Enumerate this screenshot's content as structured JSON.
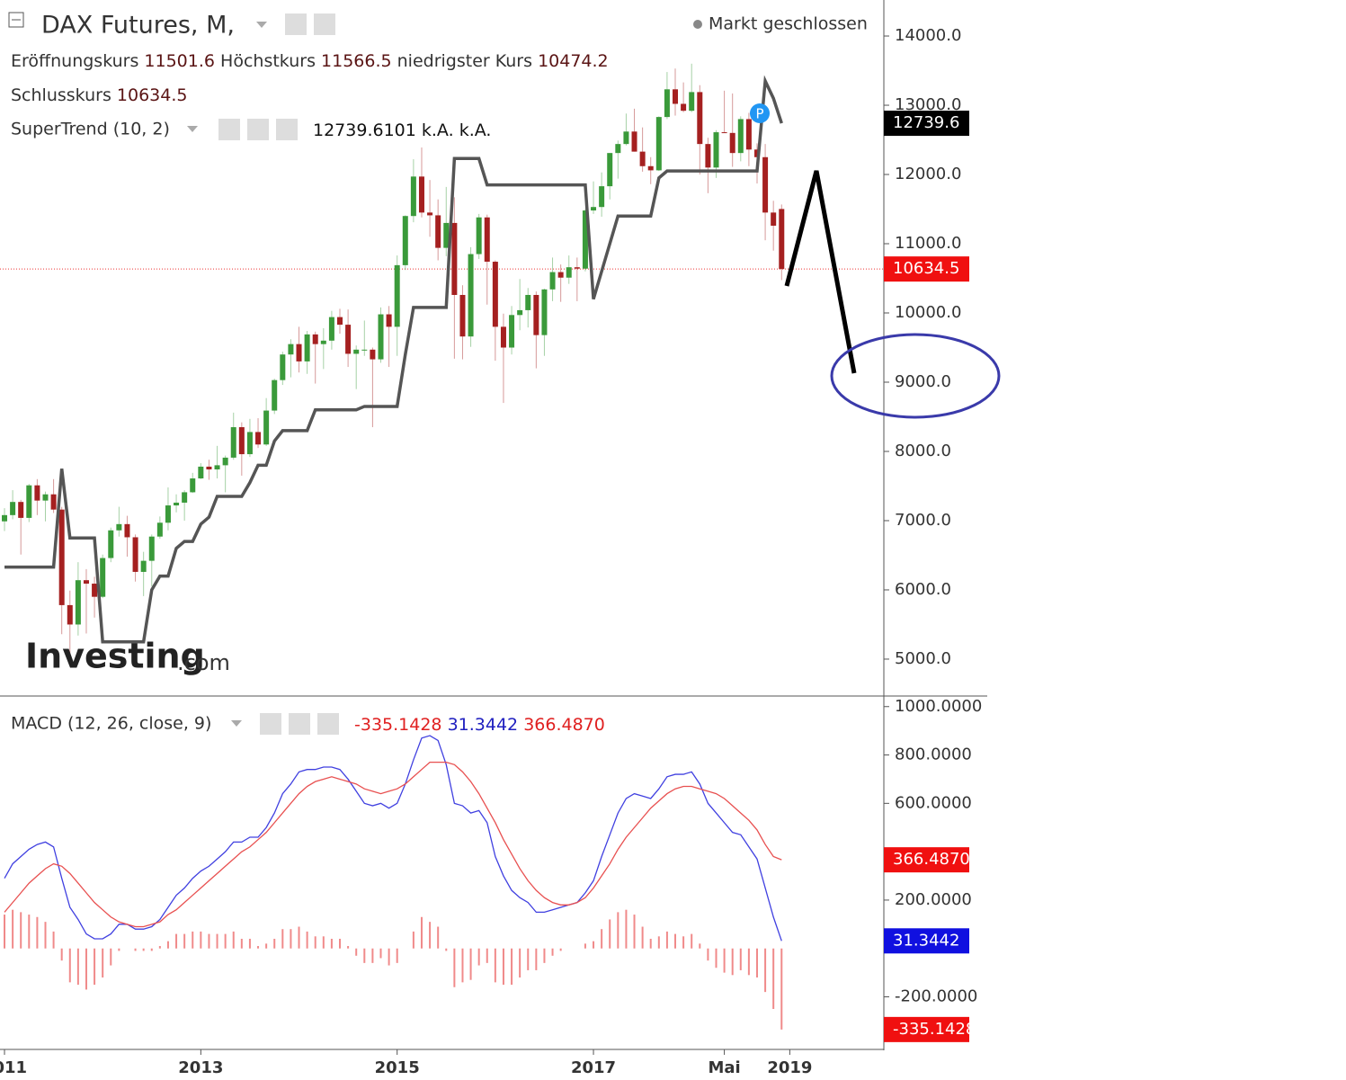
{
  "chart_data": [
    {
      "type": "candlestick",
      "title": "DAX Futures, M,",
      "status": "Markt geschlossen",
      "ohlc_legend": [
        {
          "label": "Eröffnungskurs",
          "value": 11501.6
        },
        {
          "label": "Höchstkurs",
          "value": 11566.5
        },
        {
          "label": "niedrigster Kurs",
          "value": 10474.2
        },
        {
          "label": "Schlusskurs",
          "value": 10634.5
        }
      ],
      "watermark": [
        "Investing",
        ".com"
      ],
      "marker": "P",
      "up_color": "#3a9a3a",
      "down_color": "#a52020",
      "ylim": [
        4480,
        14520
      ],
      "yticks": [
        {
          "value": 5000,
          "label": "5000.0"
        },
        {
          "value": 6000,
          "label": "6000.0"
        },
        {
          "value": 7000,
          "label": "7000.0"
        },
        {
          "value": 8000,
          "label": "8000.0"
        },
        {
          "value": 9000,
          "label": "9000.0"
        },
        {
          "value": 10000,
          "label": "10000.0"
        },
        {
          "value": 11000,
          "label": "11000.0"
        },
        {
          "value": 12000,
          "label": "12000.0"
        },
        {
          "value": 13000,
          "label": "13000.0"
        },
        {
          "value": 14000,
          "label": "14000.0"
        }
      ],
      "last_label": "10634.5",
      "values": [
        [
          6990,
          7180,
          6850,
          7080
        ],
        [
          7080,
          7440,
          7020,
          7270
        ],
        [
          7270,
          7300,
          6510,
          7040
        ],
        [
          7040,
          7530,
          6980,
          7510
        ],
        [
          7510,
          7600,
          7080,
          7290
        ],
        [
          7290,
          7420,
          6990,
          7380
        ],
        [
          7380,
          7600,
          7110,
          7160
        ],
        [
          7160,
          7200,
          5360,
          5780
        ],
        [
          5780,
          5990,
          4970,
          5500
        ],
        [
          5500,
          6400,
          5340,
          6140
        ],
        [
          6140,
          6300,
          5370,
          6090
        ],
        [
          6090,
          6190,
          5600,
          5900
        ],
        [
          5900,
          6510,
          5880,
          6460
        ],
        [
          6460,
          6900,
          6400,
          6860
        ],
        [
          6860,
          7200,
          6770,
          6950
        ],
        [
          6950,
          7070,
          6480,
          6760
        ],
        [
          6760,
          6800,
          6120,
          6260
        ],
        [
          6260,
          6550,
          5910,
          6420
        ],
        [
          6420,
          6800,
          6050,
          6770
        ],
        [
          6770,
          7060,
          6740,
          6970
        ],
        [
          6970,
          7480,
          6860,
          7220
        ],
        [
          7220,
          7380,
          7120,
          7260
        ],
        [
          7260,
          7440,
          7000,
          7410
        ],
        [
          7410,
          7690,
          7400,
          7610
        ],
        [
          7610,
          7830,
          7600,
          7780
        ],
        [
          7780,
          7880,
          7590,
          7740
        ],
        [
          7740,
          8080,
          7610,
          7800
        ],
        [
          7800,
          7940,
          7410,
          7910
        ],
        [
          7910,
          8560,
          7880,
          8350
        ],
        [
          8350,
          8420,
          7650,
          7960
        ],
        [
          7960,
          8470,
          7920,
          8280
        ],
        [
          8280,
          8480,
          8050,
          8100
        ],
        [
          8100,
          8770,
          8080,
          8590
        ],
        [
          8590,
          9050,
          8540,
          9030
        ],
        [
          9030,
          9440,
          8960,
          9400
        ],
        [
          9400,
          9620,
          9070,
          9550
        ],
        [
          9550,
          9800,
          9140,
          9300
        ],
        [
          9300,
          9740,
          9120,
          9690
        ],
        [
          9690,
          9730,
          8980,
          9550
        ],
        [
          9550,
          9780,
          9190,
          9600
        ],
        [
          9600,
          10030,
          9470,
          9940
        ],
        [
          9940,
          10060,
          9700,
          9830
        ],
        [
          9830,
          10050,
          9220,
          9410
        ],
        [
          9410,
          9530,
          8900,
          9470
        ],
        [
          9470,
          9890,
          9380,
          9470
        ],
        [
          9470,
          9500,
          8350,
          9330
        ],
        [
          9330,
          10080,
          9280,
          9980
        ],
        [
          9980,
          10100,
          9220,
          9800
        ],
        [
          9800,
          10830,
          9380,
          10690
        ],
        [
          10690,
          11410,
          10620,
          11400
        ],
        [
          11400,
          12220,
          11310,
          11970
        ],
        [
          11970,
          12390,
          11380,
          11450
        ],
        [
          11450,
          11920,
          11100,
          11410
        ],
        [
          11410,
          11640,
          10760,
          10940
        ],
        [
          10940,
          11820,
          10820,
          11300
        ],
        [
          11300,
          11670,
          9340,
          10260
        ],
        [
          10260,
          10400,
          9330,
          9660
        ],
        [
          9660,
          10950,
          9510,
          10850
        ],
        [
          10850,
          11430,
          10780,
          11380
        ],
        [
          11380,
          11420,
          10120,
          10740
        ],
        [
          10740,
          10760,
          9310,
          9800
        ],
        [
          9800,
          9990,
          8700,
          9500
        ],
        [
          9500,
          10100,
          9400,
          9970
        ],
        [
          9970,
          10490,
          9750,
          10040
        ],
        [
          10040,
          10360,
          9790,
          10260
        ],
        [
          10260,
          10310,
          9200,
          9680
        ],
        [
          9680,
          10350,
          9380,
          10340
        ],
        [
          10340,
          10800,
          10170,
          10590
        ],
        [
          10590,
          10700,
          10160,
          10510
        ],
        [
          10510,
          10830,
          10420,
          10660
        ],
        [
          10660,
          10800,
          10170,
          10640
        ],
        [
          10640,
          11500,
          10600,
          11480
        ],
        [
          11480,
          11900,
          11430,
          11530
        ],
        [
          11530,
          12030,
          11390,
          11830
        ],
        [
          11830,
          12310,
          11640,
          12310
        ],
        [
          12310,
          12490,
          11940,
          12440
        ],
        [
          12440,
          12880,
          12420,
          12620
        ],
        [
          12620,
          12950,
          12330,
          12330
        ],
        [
          12330,
          12680,
          12040,
          12120
        ],
        [
          12120,
          12250,
          11860,
          12060
        ],
        [
          12060,
          12840,
          12050,
          12830
        ],
        [
          12830,
          13480,
          12800,
          13230
        ],
        [
          13230,
          13530,
          12850,
          13020
        ],
        [
          13020,
          13330,
          12900,
          12920
        ],
        [
          12920,
          13600,
          12900,
          13190
        ],
        [
          13190,
          13290,
          12000,
          12440
        ],
        [
          12440,
          12530,
          11730,
          12100
        ],
        [
          12100,
          12640,
          11950,
          12610
        ],
        [
          12610,
          13210,
          12600,
          12600
        ],
        [
          12600,
          13170,
          12110,
          12310
        ],
        [
          12310,
          12840,
          12190,
          12800
        ],
        [
          12800,
          12890,
          12120,
          12360
        ],
        [
          12360,
          12450,
          11870,
          12250
        ],
        [
          12250,
          12440,
          11050,
          11450
        ],
        [
          11450,
          11620,
          10900,
          11260
        ],
        [
          11501.6,
          11566.5,
          10474.2,
          10634.5
        ]
      ],
      "series": [
        {
          "name": "SuperTrend (10, 2)",
          "color": "#555555",
          "legend_values": [
            12739.6101,
            "k.A.",
            "k.A."
          ],
          "tag": "12739.6",
          "values": [
            6330,
            6330,
            6330,
            6330,
            6330,
            6330,
            6330,
            7750,
            6750,
            6750,
            6750,
            6750,
            5250,
            5250,
            5250,
            5250,
            5250,
            5250,
            6000,
            6200,
            6200,
            6600,
            6700,
            6700,
            6950,
            7050,
            7350,
            7350,
            7350,
            7350,
            7550,
            7800,
            7800,
            8150,
            8300,
            8300,
            8300,
            8300,
            8600,
            8600,
            8600,
            8600,
            8600,
            8600,
            8650,
            8650,
            8650,
            8650,
            8650,
            9400,
            10080,
            10080,
            10080,
            10080,
            10080,
            12230,
            12230,
            12230,
            12230,
            11850,
            11850,
            11850,
            11850,
            11850,
            11850,
            11850,
            11850,
            11850,
            11850,
            11850,
            11850,
            11850,
            10200,
            10600,
            11000,
            11400,
            11400,
            11400,
            11400,
            11400,
            11950,
            12050,
            12050,
            12050,
            12050,
            12050,
            12050,
            12050,
            12050,
            12050,
            12050,
            12050,
            12050,
            13350,
            13100,
            12739.6101
          ]
        }
      ]
    },
    {
      "type": "macd",
      "title": "MACD (12, 26, close, 9)",
      "xlim": [
        -0.55,
        107.5
      ],
      "xticks": [
        {
          "value": 0,
          "label": "2011"
        },
        {
          "value": 24,
          "label": "2013"
        },
        {
          "value": 48,
          "label": "2015"
        },
        {
          "value": 72,
          "label": "2017"
        },
        {
          "value": 88,
          "label": "Mai"
        },
        {
          "value": 96,
          "label": "2019"
        }
      ],
      "ylim": [
        -410,
        1040
      ],
      "yticks": [
        {
          "value": 1000,
          "label": "1000.0000"
        },
        {
          "value": 800,
          "label": "800.0000"
        },
        {
          "value": 600,
          "label": "600.0000"
        },
        {
          "value": 200,
          "label": "200.0000"
        },
        {
          "value": -200,
          "label": "-200.0000"
        }
      ],
      "series": [
        {
          "kind": "histogram",
          "color": "#f08a8a",
          "legend_value": -335.1428,
          "values": [
            140,
            160,
            150,
            140,
            130,
            110,
            70,
            -50,
            -140,
            -150,
            -170,
            -150,
            -120,
            -70,
            -10,
            0,
            -10,
            -10,
            -10,
            10,
            30,
            60,
            60,
            70,
            70,
            60,
            60,
            60,
            70,
            40,
            40,
            10,
            20,
            40,
            80,
            80,
            90,
            70,
            50,
            50,
            40,
            40,
            10,
            -30,
            -60,
            -60,
            -40,
            -70,
            -60,
            0,
            70,
            130,
            110,
            90,
            -10,
            -160,
            -140,
            -130,
            -70,
            -60,
            -140,
            -150,
            -150,
            -120,
            -90,
            -90,
            -60,
            -30,
            -10,
            0,
            0,
            20,
            30,
            80,
            120,
            150,
            160,
            140,
            90,
            40,
            50,
            70,
            60,
            50,
            60,
            20,
            -50,
            -80,
            -100,
            -110,
            -90,
            -110,
            -120,
            -180,
            -250,
            -335.1428
          ]
        },
        {
          "kind": "line",
          "color": "#4040e0",
          "legend_value": 31.3442,
          "values": [
            290,
            350,
            380,
            410,
            430,
            440,
            420,
            290,
            170,
            120,
            60,
            40,
            40,
            60,
            100,
            100,
            80,
            80,
            90,
            120,
            170,
            220,
            250,
            290,
            320,
            340,
            370,
            400,
            440,
            440,
            460,
            460,
            500,
            560,
            640,
            680,
            730,
            740,
            740,
            750,
            750,
            740,
            700,
            650,
            600,
            590,
            600,
            580,
            600,
            680,
            780,
            870,
            880,
            860,
            760,
            600,
            590,
            560,
            570,
            520,
            380,
            300,
            240,
            210,
            190,
            150,
            150,
            160,
            170,
            180,
            190,
            230,
            280,
            380,
            470,
            560,
            620,
            640,
            630,
            620,
            660,
            710,
            720,
            720,
            730,
            680,
            600,
            560,
            520,
            480,
            470,
            420,
            370,
            250,
            130,
            31.3442
          ]
        },
        {
          "kind": "line",
          "color": "#e85050",
          "legend_value": 366.487,
          "tag": "366.4870",
          "values": [
            150,
            190,
            230,
            270,
            300,
            330,
            350,
            340,
            310,
            270,
            230,
            190,
            160,
            130,
            110,
            100,
            90,
            90,
            100,
            110,
            140,
            160,
            190,
            220,
            250,
            280,
            310,
            340,
            370,
            400,
            420,
            450,
            480,
            520,
            560,
            600,
            640,
            670,
            690,
            700,
            710,
            700,
            690,
            680,
            660,
            650,
            640,
            650,
            660,
            680,
            710,
            740,
            770,
            770,
            770,
            760,
            730,
            690,
            640,
            580,
            520,
            450,
            390,
            330,
            280,
            240,
            210,
            190,
            180,
            180,
            190,
            210,
            250,
            300,
            350,
            410,
            460,
            500,
            540,
            580,
            610,
            640,
            660,
            670,
            670,
            660,
            650,
            640,
            620,
            590,
            560,
            530,
            490,
            430,
            380,
            366.487
          ]
        }
      ]
    }
  ]
}
